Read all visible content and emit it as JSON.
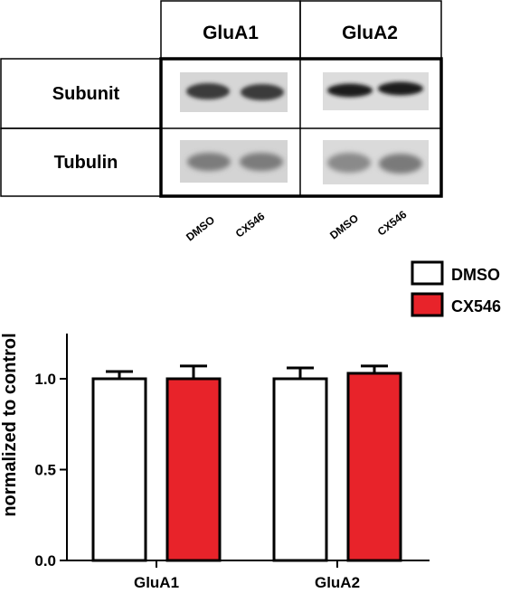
{
  "blot": {
    "column_headers": [
      "GluA1",
      "GluA2"
    ],
    "row_labels": [
      "Subunit",
      "Tubulin"
    ],
    "lane_labels": [
      "DMSO",
      "CX546",
      "DMSO",
      "CX546"
    ]
  },
  "colors": {
    "dmso": "#ffffff",
    "cx546": "#e8232a",
    "axis": "#000000"
  },
  "chart_data": {
    "type": "bar",
    "ylabel": "normalized to control",
    "xlabel": "",
    "ylim": [
      0,
      1.25
    ],
    "yticks": [
      "0.0",
      "0.5",
      "1.0"
    ],
    "categories": [
      "GluA1",
      "GluA2"
    ],
    "series": [
      {
        "name": "DMSO",
        "color": "#ffffff",
        "values": [
          1.0,
          1.0
        ],
        "errors": [
          0.04,
          0.06
        ]
      },
      {
        "name": "CX546",
        "color": "#e8232a",
        "values": [
          1.0,
          1.03
        ],
        "errors": [
          0.07,
          0.04
        ]
      }
    ],
    "legend": "top-right"
  }
}
